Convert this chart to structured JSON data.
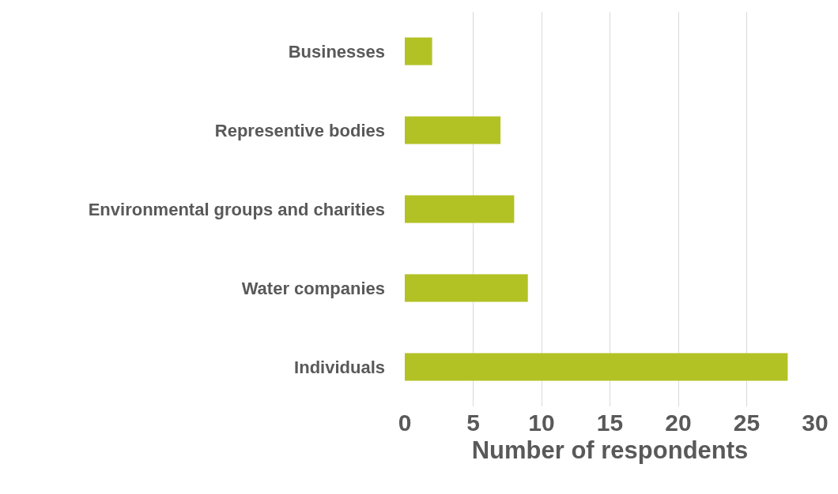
{
  "chart_data": {
    "type": "bar",
    "orientation": "horizontal",
    "xlabel": "Number of respondents",
    "categories": [
      "Businesses",
      "Representive bodies",
      "Environmental groups and charities",
      "Water companies",
      "Individuals"
    ],
    "values": [
      2,
      7,
      8,
      9,
      28
    ],
    "color": "#b2c224",
    "xlim": [
      0,
      30
    ],
    "xticks": [
      0,
      5,
      10,
      15,
      20,
      25,
      30
    ],
    "grid": "x"
  }
}
